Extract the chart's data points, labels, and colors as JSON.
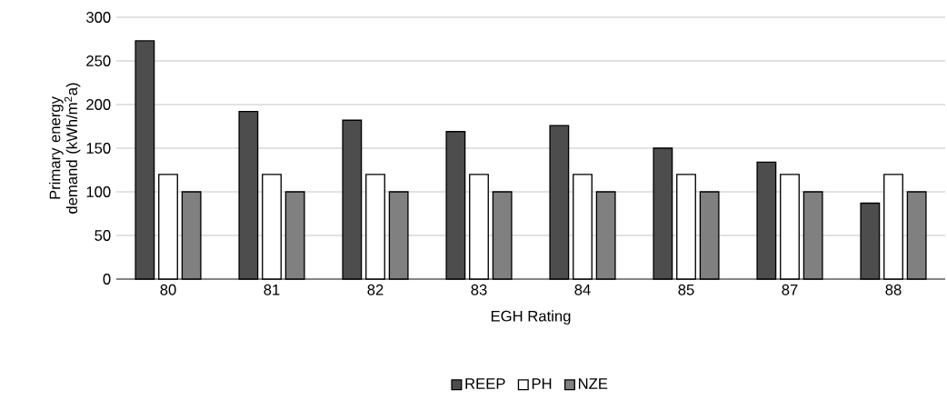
{
  "chart_data": {
    "type": "bar",
    "xlabel": "EGH Rating",
    "ylabel": "Primary energy demand (kWh/m$^{2}$a)",
    "categories": [
      "80",
      "81",
      "82",
      "83",
      "84",
      "85",
      "87",
      "88"
    ],
    "series": [
      {
        "name": "REEP",
        "color": "#4d4d4d",
        "values": [
          273,
          192,
          182,
          169,
          176,
          150,
          134,
          87
        ]
      },
      {
        "name": "PH",
        "color": "#ffffff",
        "values": [
          120,
          120,
          120,
          120,
          120,
          120,
          120,
          120
        ]
      },
      {
        "name": "NZE",
        "color": "#808080",
        "values": [
          100,
          100,
          100,
          100,
          100,
          100,
          100,
          100
        ]
      }
    ],
    "ylim": [
      0,
      300
    ],
    "yticks": [
      0,
      50,
      100,
      150,
      200,
      250,
      300
    ],
    "grid": "y",
    "legend": "bottom"
  }
}
